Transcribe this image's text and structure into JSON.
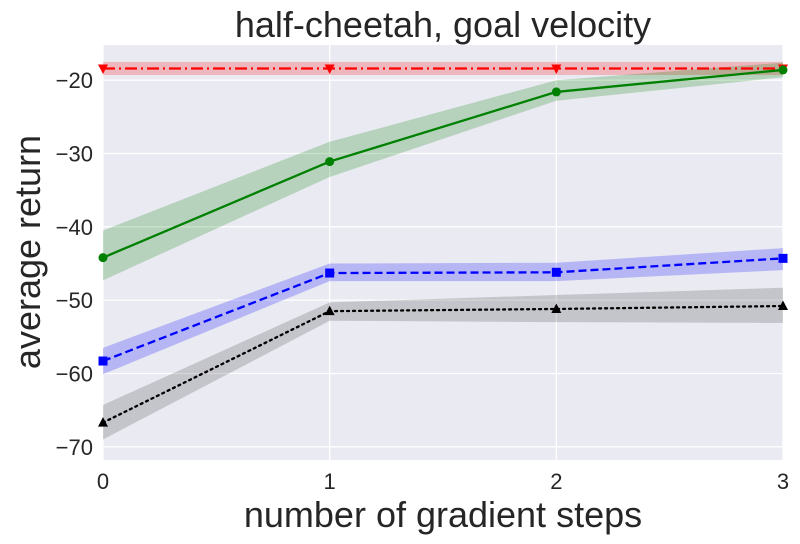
{
  "chart_data": {
    "type": "line",
    "title": "half-cheetah, goal velocity",
    "xlabel": "number of gradient steps",
    "ylabel": "average return",
    "x": [
      0,
      1,
      2,
      3
    ],
    "xlim": [
      0,
      3
    ],
    "ylim": [
      -71.8,
      -15.2
    ],
    "xticks": [
      "0",
      "1",
      "2",
      "3"
    ],
    "yticks": [
      -20,
      -30,
      -40,
      -50,
      -60,
      -70
    ],
    "ytick_labels": [
      "−20",
      "−30",
      "−40",
      "−50",
      "−60",
      "−70"
    ],
    "grid": true,
    "background": "#eaeaf2",
    "series": [
      {
        "color": "#ff0000",
        "band_color": "#ff0000",
        "style": "dashdot",
        "marker": "triangle-down",
        "values": [
          -18.4,
          -18.4,
          -18.4,
          -18.4
        ],
        "lower": [
          -19.3,
          -19.3,
          -19.3,
          -19.3
        ],
        "upper": [
          -17.5,
          -17.5,
          -17.5,
          -17.5
        ]
      },
      {
        "color": "#008000",
        "band_color": "#008000",
        "style": "solid",
        "marker": "circle",
        "values": [
          -44.2,
          -31.1,
          -21.6,
          -18.6
        ],
        "lower": [
          -47.3,
          -33.2,
          -22.8,
          -19.6
        ],
        "upper": [
          -40.5,
          -28.4,
          -20.0,
          -17.6
        ]
      },
      {
        "color": "#0000ff",
        "band_color": "#0000ff",
        "style": "dashed",
        "marker": "square",
        "values": [
          -58.3,
          -46.3,
          -46.2,
          -44.3
        ],
        "lower": [
          -60.1,
          -47.4,
          -47.4,
          -45.9
        ],
        "upper": [
          -56.5,
          -45.0,
          -44.9,
          -42.9
        ]
      },
      {
        "color": "#000000",
        "band_color": "#404040",
        "style": "dotted",
        "marker": "triangle-up",
        "values": [
          -66.7,
          -51.5,
          -51.2,
          -50.8
        ],
        "lower": [
          -69.0,
          -52.8,
          -53.0,
          -53.1
        ],
        "upper": [
          -64.3,
          -50.3,
          -49.3,
          -48.3
        ]
      }
    ]
  }
}
